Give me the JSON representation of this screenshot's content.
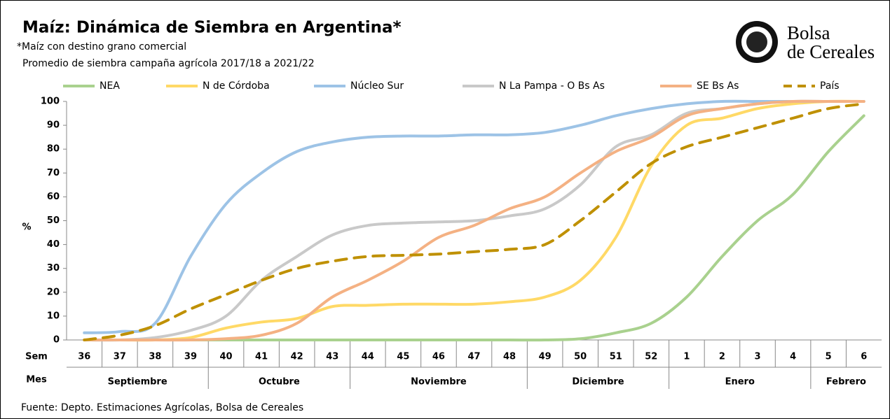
{
  "chart_data": {
    "type": "line",
    "title": "Maíz: Dinámica de Siembra en Argentina*",
    "note": "*Maíz con destino grano comercial",
    "subtitle": "Promedio de siembra campaña agrícola 2017/18  a 2021/22",
    "y_label": "%",
    "week_row_label": "Sem",
    "month_row_label": "Mes",
    "source": "Fuente: Depto. Estimaciones Agrícolas, Bolsa de Cereales",
    "logo": [
      "Bolsa",
      "de Cereales"
    ],
    "categories": [
      "36",
      "37",
      "38",
      "39",
      "40",
      "41",
      "42",
      "43",
      "44",
      "45",
      "46",
      "47",
      "48",
      "49",
      "50",
      "51",
      "52",
      "1",
      "2",
      "3",
      "4",
      "5",
      "6"
    ],
    "month_of_week": [
      "Septiembre",
      "Septiembre",
      "Septiembre",
      "Septiembre",
      "Octubre",
      "Octubre",
      "Octubre",
      "Octubre",
      "Noviembre",
      "Noviembre",
      "Noviembre",
      "Noviembre",
      "Noviembre",
      "Diciembre",
      "Diciembre",
      "Diciembre",
      "Diciembre",
      "Enero",
      "Enero",
      "Enero",
      "Enero",
      "Febrero",
      "Febrero"
    ],
    "ylim": [
      0,
      100
    ],
    "yticks": [
      0,
      10,
      20,
      30,
      40,
      50,
      60,
      70,
      80,
      90,
      100
    ],
    "series": [
      {
        "name": "NEA",
        "color": "#a9d18e",
        "dashed": false,
        "values": [
          0,
          0,
          0,
          0,
          0,
          0,
          0,
          0,
          0,
          0,
          0,
          0,
          0,
          0,
          0.5,
          3,
          7,
          18,
          35,
          50,
          61,
          79,
          94
        ]
      },
      {
        "name": "N de Córdoba",
        "color": "#ffd966",
        "dashed": false,
        "values": [
          0,
          0,
          0,
          1,
          5,
          7.5,
          9,
          14,
          14.5,
          15,
          15,
          15,
          16,
          18,
          25,
          43,
          73,
          90,
          93,
          97,
          99,
          100,
          100
        ]
      },
      {
        "name": "Núcleo Sur",
        "color": "#9dc3e6",
        "dashed": false,
        "values": [
          3,
          3.5,
          7,
          35,
          57,
          70,
          79,
          83,
          85,
          85.5,
          85.5,
          86,
          86,
          87,
          90,
          94,
          97,
          99,
          100,
          100,
          100,
          100,
          100
        ]
      },
      {
        "name": "N La Pampa - O Bs As",
        "color": "#c9c9c9",
        "dashed": false,
        "values": [
          0,
          0,
          1,
          4,
          10,
          25,
          35,
          44,
          48,
          49,
          49.5,
          50,
          52,
          55,
          65,
          81,
          86,
          95,
          97,
          99,
          100,
          100,
          100
        ]
      },
      {
        "name": "SE Bs As",
        "color": "#f4b183",
        "dashed": false,
        "values": [
          0,
          0,
          0,
          0,
          0.5,
          2,
          7,
          18,
          25,
          33,
          43,
          48,
          55,
          60,
          70,
          79,
          85,
          94,
          97,
          99,
          100,
          100,
          100
        ]
      },
      {
        "name": "País",
        "color": "#bf9000",
        "dashed": true,
        "values": [
          0,
          2,
          6,
          13,
          19,
          25,
          30,
          33,
          35,
          35.5,
          36,
          37,
          38,
          40,
          50,
          62,
          74,
          81,
          85,
          89,
          93,
          97,
          99
        ]
      }
    ]
  }
}
